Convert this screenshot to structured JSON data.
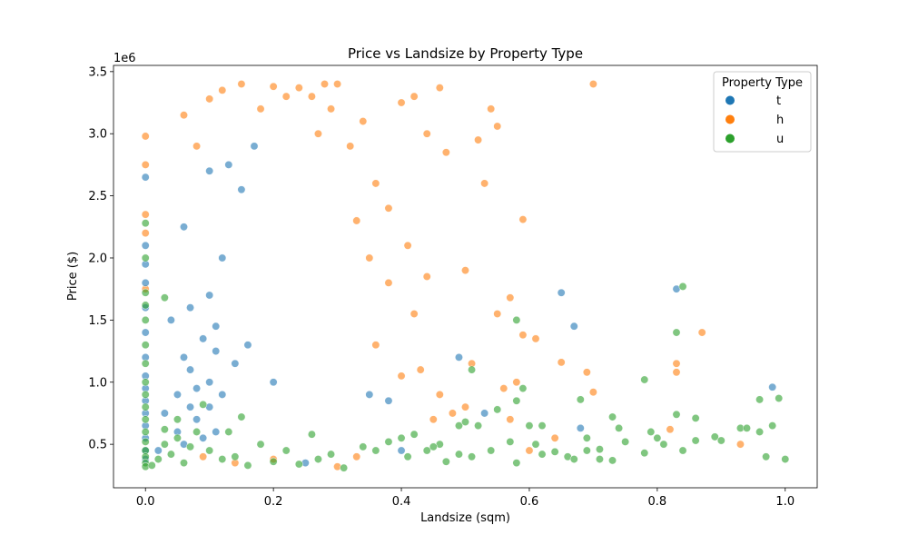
{
  "chart_data": {
    "type": "scatter",
    "title": "Price vs Landsize by Property Type",
    "xlabel": "Landsize (sqm)",
    "ylabel": "Price ($)",
    "y_offset_label": "1e6",
    "xlim": [
      -0.05,
      1.05
    ],
    "ylim": [
      0.15,
      3.55
    ],
    "x_ticks": [
      0.0,
      0.2,
      0.4,
      0.6,
      0.8,
      1.0
    ],
    "x_tick_labels": [
      "0.0",
      "0.2",
      "0.4",
      "0.6",
      "0.8",
      "1.0"
    ],
    "y_ticks": [
      0.5,
      1.0,
      1.5,
      2.0,
      2.5,
      3.0,
      3.5
    ],
    "y_tick_labels": [
      "0.5",
      "1.0",
      "1.5",
      "2.0",
      "2.5",
      "3.0",
      "3.5"
    ],
    "grid": false,
    "legend": {
      "title": "Property Type",
      "placement": "top-right"
    },
    "series": [
      {
        "name": "t",
        "color": "#1f77b4",
        "points": [
          [
            0.0,
            2.65
          ],
          [
            0.0,
            2.1
          ],
          [
            0.0,
            1.95
          ],
          [
            0.0,
            1.8
          ],
          [
            0.0,
            1.6
          ],
          [
            0.0,
            1.4
          ],
          [
            0.0,
            1.2
          ],
          [
            0.0,
            1.05
          ],
          [
            0.0,
            0.95
          ],
          [
            0.0,
            0.85
          ],
          [
            0.0,
            0.75
          ],
          [
            0.0,
            0.65
          ],
          [
            0.0,
            0.55
          ],
          [
            0.0,
            0.45
          ],
          [
            0.0,
            0.38
          ],
          [
            0.02,
            0.45
          ],
          [
            0.03,
            0.75
          ],
          [
            0.04,
            1.5
          ],
          [
            0.05,
            0.6
          ],
          [
            0.05,
            0.9
          ],
          [
            0.06,
            1.2
          ],
          [
            0.06,
            0.5
          ],
          [
            0.07,
            0.8
          ],
          [
            0.07,
            1.1
          ],
          [
            0.08,
            0.7
          ],
          [
            0.08,
            0.95
          ],
          [
            0.09,
            1.35
          ],
          [
            0.09,
            0.55
          ],
          [
            0.1,
            1.0
          ],
          [
            0.1,
            0.8
          ],
          [
            0.1,
            1.7
          ],
          [
            0.1,
            2.7
          ],
          [
            0.11,
            0.6
          ],
          [
            0.11,
            1.25
          ],
          [
            0.12,
            0.9
          ],
          [
            0.12,
            2.0
          ],
          [
            0.13,
            2.75
          ],
          [
            0.15,
            2.55
          ],
          [
            0.16,
            1.3
          ],
          [
            0.17,
            2.9
          ],
          [
            0.2,
            1.0
          ],
          [
            0.25,
            0.35
          ],
          [
            0.35,
            0.9
          ],
          [
            0.38,
            0.85
          ],
          [
            0.4,
            0.45
          ],
          [
            0.49,
            1.2
          ],
          [
            0.53,
            0.75
          ],
          [
            0.65,
            1.72
          ],
          [
            0.67,
            1.45
          ],
          [
            0.68,
            0.63
          ],
          [
            0.83,
            1.75
          ],
          [
            0.98,
            0.96
          ],
          [
            0.06,
            2.25
          ],
          [
            0.07,
            1.6
          ],
          [
            0.11,
            1.45
          ],
          [
            0.14,
            1.15
          ]
        ]
      },
      {
        "name": "h",
        "color": "#ff7f0e",
        "points": [
          [
            0.0,
            2.98
          ],
          [
            0.0,
            2.75
          ],
          [
            0.0,
            2.35
          ],
          [
            0.0,
            2.2
          ],
          [
            0.0,
            1.75
          ],
          [
            0.15,
            3.4
          ],
          [
            0.2,
            3.38
          ],
          [
            0.24,
            3.37
          ],
          [
            0.28,
            3.4
          ],
          [
            0.3,
            3.4
          ],
          [
            0.46,
            3.37
          ],
          [
            0.7,
            3.4
          ],
          [
            0.54,
            3.2
          ],
          [
            0.55,
            3.06
          ],
          [
            0.52,
            2.95
          ],
          [
            0.53,
            2.6
          ],
          [
            0.59,
            2.31
          ],
          [
            0.42,
            3.3
          ],
          [
            0.4,
            3.25
          ],
          [
            0.44,
            3.0
          ],
          [
            0.47,
            2.85
          ],
          [
            0.5,
            1.9
          ],
          [
            0.55,
            1.55
          ],
          [
            0.57,
            1.68
          ],
          [
            0.59,
            1.38
          ],
          [
            0.61,
            1.35
          ],
          [
            0.65,
            1.16
          ],
          [
            0.69,
            1.08
          ],
          [
            0.7,
            0.92
          ],
          [
            0.83,
            1.15
          ],
          [
            0.83,
            1.08
          ],
          [
            0.87,
            1.4
          ],
          [
            0.82,
            0.62
          ],
          [
            0.93,
            0.5
          ],
          [
            0.56,
            0.95
          ],
          [
            0.5,
            0.8
          ],
          [
            0.48,
            0.75
          ],
          [
            0.45,
            0.7
          ],
          [
            0.6,
            0.45
          ],
          [
            0.57,
            0.7
          ],
          [
            0.4,
            1.05
          ],
          [
            0.43,
            1.1
          ],
          [
            0.46,
            0.9
          ],
          [
            0.38,
            1.8
          ],
          [
            0.35,
            2.0
          ],
          [
            0.33,
            2.3
          ],
          [
            0.36,
            2.6
          ],
          [
            0.38,
            2.4
          ],
          [
            0.41,
            2.1
          ],
          [
            0.32,
            2.9
          ],
          [
            0.34,
            3.1
          ],
          [
            0.29,
            3.2
          ],
          [
            0.27,
            3.0
          ],
          [
            0.06,
            3.15
          ],
          [
            0.08,
            2.9
          ],
          [
            0.1,
            3.28
          ],
          [
            0.12,
            3.35
          ],
          [
            0.18,
            3.2
          ],
          [
            0.22,
            3.3
          ],
          [
            0.26,
            3.3
          ],
          [
            0.09,
            0.4
          ],
          [
            0.14,
            0.35
          ],
          [
            0.2,
            0.38
          ],
          [
            0.3,
            0.32
          ],
          [
            0.33,
            0.4
          ],
          [
            0.51,
            1.15
          ],
          [
            0.58,
            1.0
          ],
          [
            0.64,
            0.55
          ],
          [
            0.36,
            1.3
          ],
          [
            0.42,
            1.55
          ],
          [
            0.44,
            1.85
          ]
        ]
      },
      {
        "name": "u",
        "color": "#2ca02c",
        "points": [
          [
            0.0,
            2.28
          ],
          [
            0.0,
            2.0
          ],
          [
            0.0,
            1.72
          ],
          [
            0.0,
            1.62
          ],
          [
            0.0,
            1.5
          ],
          [
            0.0,
            1.3
          ],
          [
            0.0,
            1.15
          ],
          [
            0.0,
            1.0
          ],
          [
            0.0,
            0.9
          ],
          [
            0.0,
            0.8
          ],
          [
            0.0,
            0.7
          ],
          [
            0.0,
            0.6
          ],
          [
            0.0,
            0.52
          ],
          [
            0.0,
            0.45
          ],
          [
            0.0,
            0.4
          ],
          [
            0.0,
            0.35
          ],
          [
            0.0,
            0.32
          ],
          [
            0.01,
            0.33
          ],
          [
            0.02,
            0.38
          ],
          [
            0.03,
            0.5
          ],
          [
            0.04,
            0.42
          ],
          [
            0.05,
            0.55
          ],
          [
            0.06,
            0.35
          ],
          [
            0.07,
            0.48
          ],
          [
            0.08,
            0.6
          ],
          [
            0.1,
            0.45
          ],
          [
            0.12,
            0.38
          ],
          [
            0.14,
            0.4
          ],
          [
            0.16,
            0.33
          ],
          [
            0.2,
            0.36
          ],
          [
            0.24,
            0.34
          ],
          [
            0.27,
            0.38
          ],
          [
            0.29,
            0.42
          ],
          [
            0.31,
            0.31
          ],
          [
            0.34,
            0.48
          ],
          [
            0.36,
            0.45
          ],
          [
            0.38,
            0.52
          ],
          [
            0.4,
            0.55
          ],
          [
            0.41,
            0.4
          ],
          [
            0.42,
            0.58
          ],
          [
            0.44,
            0.45
          ],
          [
            0.46,
            0.5
          ],
          [
            0.49,
            0.65
          ],
          [
            0.49,
            0.42
          ],
          [
            0.5,
            0.68
          ],
          [
            0.51,
            0.4
          ],
          [
            0.52,
            0.65
          ],
          [
            0.54,
            0.45
          ],
          [
            0.55,
            0.78
          ],
          [
            0.57,
            0.52
          ],
          [
            0.58,
            0.35
          ],
          [
            0.58,
            0.85
          ],
          [
            0.58,
            1.5
          ],
          [
            0.59,
            0.95
          ],
          [
            0.6,
            0.65
          ],
          [
            0.61,
            0.5
          ],
          [
            0.62,
            0.42
          ],
          [
            0.62,
            0.65
          ],
          [
            0.64,
            0.44
          ],
          [
            0.66,
            0.4
          ],
          [
            0.67,
            0.38
          ],
          [
            0.68,
            0.86
          ],
          [
            0.69,
            0.55
          ],
          [
            0.69,
            0.45
          ],
          [
            0.71,
            0.38
          ],
          [
            0.73,
            0.72
          ],
          [
            0.73,
            0.37
          ],
          [
            0.74,
            0.63
          ],
          [
            0.75,
            0.52
          ],
          [
            0.78,
            1.02
          ],
          [
            0.79,
            0.6
          ],
          [
            0.8,
            0.55
          ],
          [
            0.81,
            0.5
          ],
          [
            0.83,
            0.74
          ],
          [
            0.83,
            1.4
          ],
          [
            0.84,
            1.77
          ],
          [
            0.84,
            0.45
          ],
          [
            0.86,
            0.71
          ],
          [
            0.86,
            0.53
          ],
          [
            0.89,
            0.56
          ],
          [
            0.9,
            0.53
          ],
          [
            0.93,
            0.63
          ],
          [
            0.94,
            0.63
          ],
          [
            0.96,
            0.86
          ],
          [
            0.96,
            0.6
          ],
          [
            0.97,
            0.4
          ],
          [
            0.98,
            0.65
          ],
          [
            0.99,
            0.87
          ],
          [
            1.0,
            0.38
          ],
          [
            0.78,
            0.43
          ],
          [
            0.71,
            0.46
          ],
          [
            0.51,
            1.1
          ],
          [
            0.47,
            0.36
          ],
          [
            0.45,
            0.48
          ],
          [
            0.03,
            0.62
          ],
          [
            0.05,
            0.7
          ],
          [
            0.09,
            0.82
          ],
          [
            0.13,
            0.6
          ],
          [
            0.15,
            0.72
          ],
          [
            0.18,
            0.5
          ],
          [
            0.22,
            0.45
          ],
          [
            0.26,
            0.58
          ],
          [
            0.03,
            1.68
          ]
        ]
      }
    ]
  }
}
